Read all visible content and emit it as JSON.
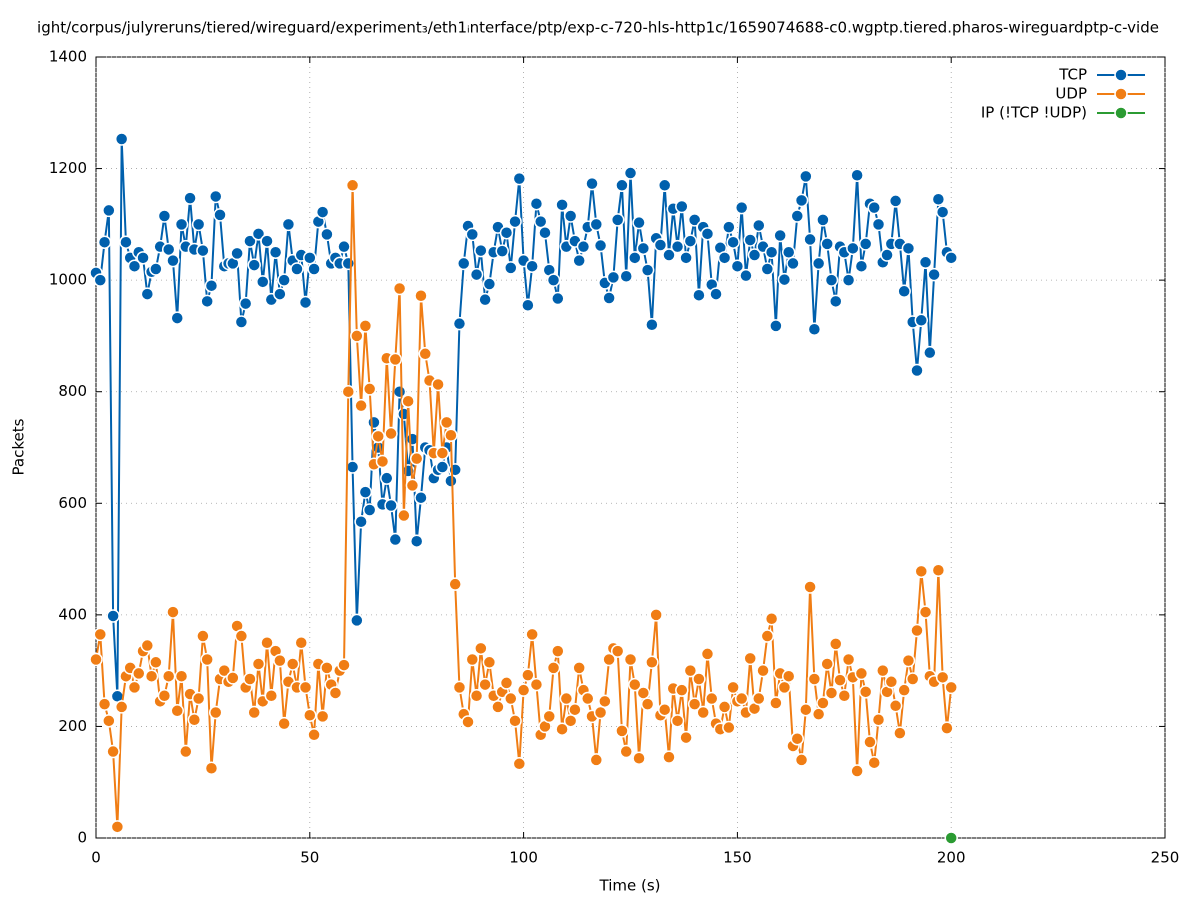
{
  "chart_data": {
    "type": "line",
    "title": "ight/corpus/julyreruns/tiered/wireguard/experiment₃/eth1ᵢnterface/ptp/exp-c-720-hls-http1c/1659074688-c0.wgptp.tiered.pharos-wireguardptp-c-vide",
    "x_label": "Time (s)",
    "y_label": "Packets",
    "xlim": [
      0,
      250
    ],
    "xticks": [
      0,
      50,
      100,
      150,
      200,
      250
    ],
    "ylim": [
      0,
      1400
    ],
    "yticks": [
      0,
      200,
      400,
      600,
      800,
      1000,
      1200,
      1400
    ],
    "grid": true,
    "legend": "top-right",
    "x": [
      0,
      1,
      2,
      3,
      4,
      5,
      6,
      7,
      8,
      9,
      10,
      11,
      12,
      13,
      14,
      15,
      16,
      17,
      18,
      19,
      20,
      21,
      22,
      23,
      24,
      25,
      26,
      27,
      28,
      29,
      30,
      31,
      32,
      33,
      34,
      35,
      36,
      37,
      38,
      39,
      40,
      41,
      42,
      43,
      44,
      45,
      46,
      47,
      48,
      49,
      50,
      51,
      52,
      53,
      54,
      55,
      56,
      57,
      58,
      59,
      60,
      61,
      62,
      63,
      64,
      65,
      66,
      67,
      68,
      69,
      70,
      71,
      72,
      73,
      74,
      75,
      76,
      77,
      78,
      79,
      80,
      81,
      82,
      83,
      84,
      85,
      86,
      87,
      88,
      89,
      90,
      91,
      92,
      93,
      94,
      95,
      96,
      97,
      98,
      99,
      100,
      101,
      102,
      103,
      104,
      105,
      106,
      107,
      108,
      109,
      110,
      111,
      112,
      113,
      114,
      115,
      116,
      117,
      118,
      119,
      120,
      121,
      122,
      123,
      124,
      125,
      126,
      127,
      128,
      129,
      130,
      131,
      132,
      133,
      134,
      135,
      136,
      137,
      138,
      139,
      140,
      141,
      142,
      143,
      144,
      145,
      146,
      147,
      148,
      149,
      150,
      151,
      152,
      153,
      154,
      155,
      156,
      157,
      158,
      159,
      160,
      161,
      162,
      163,
      164,
      165,
      166,
      167,
      168,
      169,
      170,
      171,
      172,
      173,
      174,
      175,
      176,
      177,
      178,
      179,
      180,
      181,
      182,
      183,
      184,
      185,
      186,
      187,
      188,
      189,
      190,
      191,
      192,
      193,
      194,
      195,
      196,
      197,
      198,
      199,
      200
    ],
    "series": [
      {
        "name": "TCP",
        "color": "#0060ad",
        "values": [
          1013,
          1000,
          1068,
          1125,
          398,
          254,
          1253,
          1068,
          1040,
          1025,
          1050,
          1040,
          975,
          1015,
          1020,
          1060,
          1115,
          1055,
          1035,
          932,
          1100,
          1060,
          1147,
          1055,
          1100,
          1053,
          962,
          990,
          1150,
          1117,
          1025,
          1030,
          1030,
          1048,
          925,
          958,
          1070,
          1027,
          1083,
          997,
          1070,
          965,
          1050,
          975,
          1000,
          1100,
          1035,
          1020,
          1045,
          960,
          1040,
          1020,
          1105,
          1122,
          1082,
          1030,
          1040,
          1030,
          1060,
          1030,
          665,
          390,
          567,
          620,
          588,
          745,
          700,
          598,
          645,
          596,
          535,
          800,
          760,
          658,
          715,
          532,
          610,
          700,
          695,
          645,
          660,
          665,
          700,
          640,
          660,
          922,
          1030,
          1097,
          1082,
          1010,
          1053,
          965,
          993,
          1050,
          1095,
          1052,
          1085,
          1022,
          1105,
          1182,
          1035,
          955,
          1025,
          1137,
          1105,
          1085,
          1018,
          1000,
          967,
          1135,
          1060,
          1115,
          1070,
          1035,
          1060,
          1095,
          1173,
          1100,
          1062,
          995,
          968,
          1005,
          1108,
          1170,
          1007,
          1192,
          1040,
          1103,
          1057,
          1018,
          920,
          1075,
          1063,
          1170,
          1045,
          1128,
          1060,
          1132,
          1040,
          1070,
          1108,
          973,
          1095,
          1083,
          992,
          975,
          1058,
          1040,
          1095,
          1068,
          1025,
          1130,
          1008,
          1072,
          1045,
          1098,
          1060,
          1020,
          1050,
          918,
          1080,
          1001,
          1050,
          1030,
          1115,
          1143,
          1186,
          1073,
          912,
          1030,
          1108,
          1065,
          1000,
          962,
          1060,
          1050,
          1000,
          1057,
          1188,
          1025,
          1065,
          1137,
          1130,
          1100,
          1032,
          1045,
          1065,
          1142,
          1065,
          980,
          1057,
          925,
          838,
          928,
          1032,
          870,
          1010,
          1145,
          1122,
          1050,
          1040
        ]
      },
      {
        "name": "UDP",
        "color": "#f07d14",
        "values": [
          320,
          365,
          240,
          210,
          155,
          20,
          235,
          290,
          305,
          270,
          295,
          335,
          345,
          290,
          315,
          245,
          255,
          290,
          405,
          228,
          290,
          155,
          258,
          212,
          250,
          362,
          320,
          125,
          225,
          285,
          300,
          280,
          287,
          380,
          362,
          270,
          285,
          225,
          312,
          245,
          350,
          255,
          335,
          318,
          205,
          280,
          312,
          270,
          350,
          270,
          220,
          185,
          312,
          218,
          305,
          275,
          260,
          300,
          310,
          800,
          1170,
          900,
          775,
          918,
          805,
          670,
          720,
          675,
          860,
          725,
          858,
          985,
          578,
          783,
          632,
          680,
          972,
          868,
          820,
          690,
          813,
          690,
          745,
          722,
          455,
          270,
          222,
          208,
          320,
          255,
          340,
          275,
          315,
          255,
          235,
          262,
          278,
          250,
          210,
          133,
          265,
          292,
          365,
          275,
          185,
          200,
          218,
          305,
          335,
          195,
          250,
          210,
          230,
          305,
          265,
          250,
          218,
          140,
          225,
          245,
          320,
          340,
          335,
          192,
          155,
          320,
          275,
          143,
          260,
          240,
          315,
          400,
          220,
          230,
          145,
          268,
          210,
          265,
          180,
          300,
          240,
          285,
          225,
          330,
          250,
          205,
          195,
          235,
          198,
          270,
          245,
          250,
          225,
          322,
          232,
          250,
          300,
          362,
          393,
          242,
          295,
          270,
          290,
          165,
          178,
          140,
          230,
          450,
          285,
          222,
          242,
          312,
          260,
          348,
          283,
          255,
          320,
          288,
          120,
          295,
          262,
          172,
          135,
          212,
          300,
          262,
          280,
          237,
          188,
          265,
          318,
          285,
          372,
          478,
          405,
          290,
          280,
          480,
          288,
          197,
          270
        ]
      },
      {
        "name": "IP (!TCP  !UDP)",
        "color": "#2b9b32",
        "x": [
          200
        ],
        "values": [
          0
        ]
      }
    ]
  }
}
